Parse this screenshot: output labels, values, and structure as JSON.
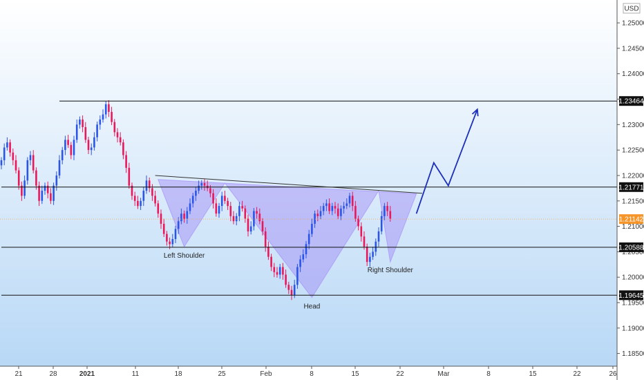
{
  "chart_data": {
    "type": "candlestick",
    "currency_label": "USD",
    "ylim": [
      1.1825,
      1.2545
    ],
    "yticks": [
      "1.25000",
      "1.24500",
      "1.24000",
      "1.23500",
      "1.23000",
      "1.22500",
      "1.22000",
      "1.21500",
      "1.21000",
      "1.20500",
      "1.20000",
      "1.19500",
      "1.19000",
      "1.18500"
    ],
    "xtick_labels": [
      "21",
      "28",
      "2021",
      "11",
      "18",
      "25",
      "Feb",
      "8",
      "15",
      "22",
      "Mar",
      "8",
      "15",
      "22",
      "26"
    ],
    "levels": [
      {
        "label": "1.23464",
        "value": 1.23464,
        "from_index": 20
      },
      {
        "label": "1.21771",
        "value": 1.21771,
        "from_index": 0
      },
      {
        "label": "1.20588",
        "value": 1.20588,
        "from_index": 0
      },
      {
        "label": "1.19645",
        "value": 1.19645,
        "from_index": 0
      }
    ],
    "current_price": {
      "label": "1.21142",
      "value": 1.21142
    },
    "closes": [
      1.223,
      1.2255,
      1.2265,
      1.2245,
      1.223,
      1.221,
      1.218,
      1.216,
      1.219,
      1.223,
      1.224,
      1.221,
      1.218,
      1.215,
      1.217,
      1.218,
      1.2165,
      1.215,
      1.218,
      1.22,
      1.223,
      1.225,
      1.227,
      1.226,
      1.224,
      1.227,
      1.23,
      1.231,
      1.2295,
      1.227,
      1.225,
      1.2255,
      1.2275,
      1.23,
      1.231,
      1.232,
      1.234,
      1.2325,
      1.2305,
      1.2285,
      1.2275,
      1.2265,
      1.224,
      1.2215,
      1.218,
      1.216,
      1.215,
      1.214,
      1.215,
      1.217,
      1.219,
      1.2175,
      1.216,
      1.2145,
      1.2125,
      1.2105,
      1.2085,
      1.207,
      1.2065,
      1.2075,
      1.2095,
      1.211,
      1.2125,
      1.2115,
      1.213,
      1.2145,
      1.216,
      1.217,
      1.218,
      1.2185,
      1.218,
      1.2175,
      1.2165,
      1.2145,
      1.2125,
      1.214,
      1.216,
      1.215,
      1.214,
      1.212,
      1.211,
      1.212,
      1.214,
      1.2135,
      1.2115,
      1.209,
      1.21,
      1.213,
      1.2125,
      1.211,
      1.209,
      1.206,
      1.204,
      1.202,
      1.201,
      1.2005,
      1.202,
      1.2005,
      1.1985,
      1.1975,
      1.1965,
      1.1985,
      1.202,
      1.2035,
      1.2045,
      1.2065,
      1.2085,
      1.2105,
      1.2125,
      1.212,
      1.213,
      1.214,
      1.2145,
      1.213,
      1.214,
      1.2135,
      1.212,
      1.2135,
      1.214,
      1.2145,
      1.216,
      1.214,
      1.2115,
      1.21,
      1.208,
      1.206,
      1.203,
      1.204,
      1.205,
      1.207,
      1.209,
      1.212,
      1.214,
      1.213,
      1.2115
    ],
    "projection": [
      {
        "x_index": 143,
        "y": 1.2125
      },
      {
        "x_index": 149,
        "y": 1.2225
      },
      {
        "x_index": 154,
        "y": 1.218
      },
      {
        "x_index": 164,
        "y": 1.233
      }
    ],
    "neckline": [
      {
        "x_index": 53,
        "y": 1.22
      },
      {
        "x_index": 145,
        "y": 1.2165
      }
    ],
    "pattern_polygon": [
      {
        "x_index": 54,
        "y": 1.2192
      },
      {
        "x_index": 63,
        "y": 1.206
      },
      {
        "x_index": 77,
        "y": 1.2185
      },
      {
        "x_index": 107,
        "y": 1.196
      },
      {
        "x_index": 130,
        "y": 1.217
      },
      {
        "x_index": 134,
        "y": 1.203
      },
      {
        "x_index": 143,
        "y": 1.2164
      }
    ],
    "annotations": [
      {
        "text": "Left Shoulder",
        "x_index": 63,
        "y": 1.2044
      },
      {
        "text": "Head",
        "x_index": 107,
        "y": 1.1944
      },
      {
        "text": "Right Shoulder",
        "x_index": 134,
        "y": 1.2015
      }
    ]
  }
}
